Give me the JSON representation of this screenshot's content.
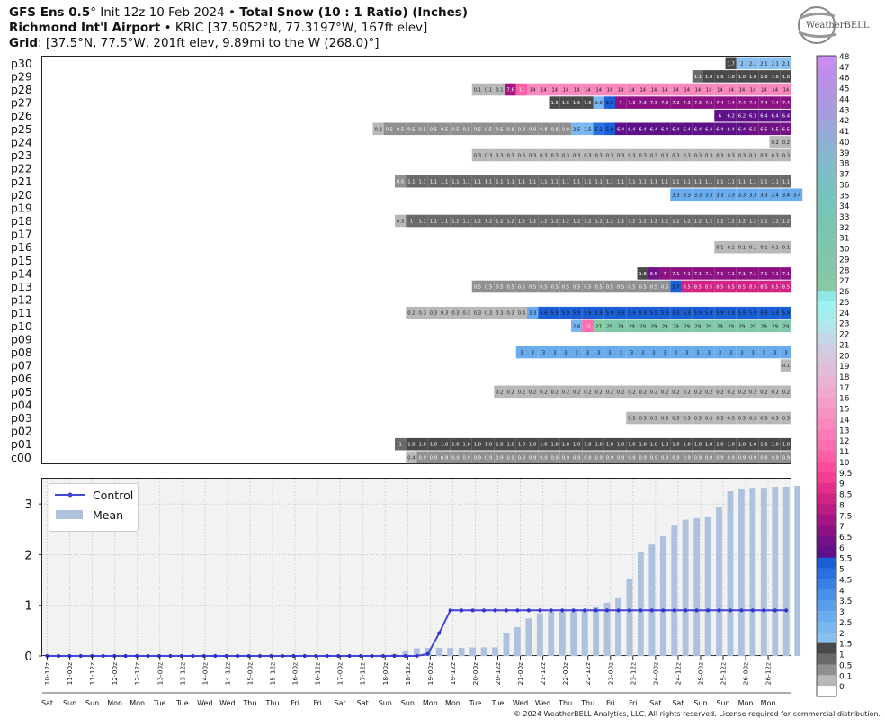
{
  "header": {
    "line1_model": "GFS Ens 0.5",
    "line1_deg": "°",
    "line1_init": " Init 12z 10 Feb 2024",
    "line1_sep": " • ",
    "line1_product": "Total Snow (10 : 1 Ratio) (Inches)",
    "line2_station": "Richmond Int'l Airport",
    "line2_sep": " • ",
    "line2_detail": "KRIC [37.5052°N, 77.3197°W, 167ft elev]",
    "line3_label": "Grid",
    "line3_detail": ": [37.5°N, 77.5°W, 201ft elev, 9.89mi to the W (268.0)°]"
  },
  "logo": {
    "text": "WeatherBELL"
  },
  "copyright": "© 2024 WeatherBELL Analytics, LLC. All rights reserved. License required for commercial distribution.",
  "colors": {
    "control_line": "#4545d6",
    "mean_bar": "#aec2de",
    "grid_bg": "#f2f2f2"
  },
  "colorbar": {
    "labels": [
      "48",
      "47",
      "46",
      "45",
      "44",
      "43",
      "42",
      "41",
      "40",
      "39",
      "38",
      "37",
      "36",
      "35",
      "34",
      "33",
      "32",
      "31",
      "30",
      "29",
      "28",
      "27",
      "26",
      "25",
      "24",
      "23",
      "22",
      "21",
      "20",
      "19",
      "18",
      "17",
      "16",
      "15",
      "14",
      "13",
      "12",
      "11",
      "10",
      "9.5",
      "9",
      "8.5",
      "8",
      "7.5",
      "7",
      "6.5",
      "6",
      "5.5",
      "5",
      "4.5",
      "4",
      "3.5",
      "3",
      "2.5",
      "2",
      "1.5",
      "1",
      "0.5",
      "0.1",
      "0"
    ],
    "colors": [
      "#c98ef0",
      "#c08ee9",
      "#b890e5",
      "#b294e2",
      "#ac98df",
      "#a59dde",
      "#9ca5da",
      "#94abd7",
      "#8cb2d3",
      "#85b7cf",
      "#7fbcca",
      "#7bbfc5",
      "#79c1c0",
      "#78c3bc",
      "#79c4b8",
      "#7ac4b4",
      "#7bc5b1",
      "#7dc6ae",
      "#7fc6ab",
      "#81c7a9",
      "#84c8a7",
      "#86cba6",
      "#8ee6e6",
      "#9ff1f1",
      "#a8ecec",
      "#b4e4ea",
      "#c3d8e6",
      "#d0cde2",
      "#dac4de",
      "#e3bcd9",
      "#eab3d4",
      "#f0a8cf",
      "#f49dc9",
      "#f793c3",
      "#f988bd",
      "#fb7cb6",
      "#fc6eae",
      "#fd5fa6",
      "#fc4d9c",
      "#f23f93",
      "#e22f8b",
      "#cf2385",
      "#ba1a83",
      "#a21583",
      "#8c1284",
      "#731186",
      "#5e1189",
      "#1a5fd5",
      "#2a6fdd",
      "#3a7fe3",
      "#4a8fe8",
      "#5a9deb",
      "#6aabee",
      "#7ab6ef",
      "#8ac0f0",
      "#4a4a4a",
      "#6a6a6a",
      "#909090",
      "#b8b8b8",
      "#ffffff"
    ]
  },
  "chart_data": [
    {
      "type": "heatmap",
      "title": "GFS Ens 0.5° Init 12z 10 Feb 2024 • Total Snow (10 : 1 Ratio) (Inches)",
      "members": [
        "p30",
        "p29",
        "p28",
        "p27",
        "p26",
        "p25",
        "p24",
        "p23",
        "p22",
        "p21",
        "p20",
        "p19",
        "p18",
        "p17",
        "p16",
        "p15",
        "p14",
        "p13",
        "p12",
        "p11",
        "p10",
        "p09",
        "p08",
        "p07",
        "p06",
        "p05",
        "p04",
        "p03",
        "p02",
        "p01",
        "c00"
      ],
      "rows": {
        "p30": {
          "start": 62,
          "values": [
            "1.7",
            "2",
            "2.1",
            "2.1",
            "2.1",
            "2.1"
          ]
        },
        "p29": {
          "start": 59,
          "values": [
            "1.1",
            "1.8",
            "1.8",
            "1.8",
            "1.8",
            "1.8",
            "1.8",
            "1.8",
            "1.8"
          ]
        },
        "p28": {
          "start": 39,
          "values": [
            "0.1",
            "0.1",
            "0.1",
            "7.6",
            "11",
            "14",
            "14",
            "14",
            "14",
            "14",
            "14",
            "14",
            "14",
            "14",
            "14",
            "14",
            "14",
            "14",
            "14",
            "14",
            "14",
            "14",
            "14",
            "14",
            "14",
            "14",
            "14",
            "14",
            "14"
          ]
        },
        "p27": {
          "start": 46,
          "values": [
            "1.6",
            "1.6",
            "1.6",
            "1.6",
            "2.9",
            "5.6",
            "7",
            "7.3",
            "7.3",
            "7.3",
            "7.3",
            "7.3",
            "7.3",
            "7.3",
            "7.4",
            "7.4",
            "7.4",
            "7.4",
            "7.4",
            "7.4",
            "7.4",
            "7.4"
          ]
        },
        "p26": {
          "start": 61,
          "values": [
            "6",
            "6.2",
            "6.2",
            "6.3",
            "6.4",
            "6.4",
            "6.4"
          ]
        },
        "p25": {
          "start": 30,
          "values": [
            "0.2",
            "0.5",
            "0.5",
            "0.5",
            "0.5",
            "0.5",
            "0.5",
            "0.5",
            "0.5",
            "0.5",
            "0.5",
            "0.5",
            "0.8",
            "0.8",
            "0.8",
            "0.8",
            "0.8",
            "0.8",
            "2.5",
            "2.5",
            "5.2",
            "5.9",
            "6.4",
            "6.4",
            "6.4",
            "6.4",
            "6.4",
            "6.4",
            "6.4",
            "6.4",
            "6.4",
            "6.4",
            "6.4",
            "6.4",
            "6.5",
            "6.5",
            "6.5",
            "6.5"
          ]
        },
        "p24": {
          "start": 66,
          "values": [
            "0.2",
            "0.2"
          ]
        },
        "p23": {
          "start": 39,
          "values": [
            "0.3",
            "0.3",
            "0.3",
            "0.3",
            "0.3",
            "0.3",
            "0.3",
            "0.3",
            "0.3",
            "0.3",
            "0.3",
            "0.3",
            "0.3",
            "0.3",
            "0.3",
            "0.3",
            "0.3",
            "0.3",
            "0.3",
            "0.3",
            "0.3",
            "0.3",
            "0.3",
            "0.3",
            "0.3",
            "0.3",
            "0.3",
            "0.3",
            "0.3"
          ]
        },
        "p22": {
          "start": 0,
          "values": []
        },
        "p21": {
          "start": 32,
          "values": [
            "0.6",
            "1.1",
            "1.1",
            "1.1",
            "1.1",
            "1.1",
            "1.1",
            "1.1",
            "1.1",
            "1.1",
            "1.1",
            "1.1",
            "1.1",
            "1.1",
            "1.1",
            "1.1",
            "1.1",
            "1.1",
            "1.1",
            "1.1",
            "1.1",
            "1.1",
            "1.1",
            "1.1",
            "1.1",
            "1.1",
            "1.1",
            "1.1",
            "1.1",
            "1.1",
            "1.1",
            "1.1",
            "1.1",
            "1.1",
            "1.1",
            "1.1"
          ]
        },
        "p20": {
          "start": 57,
          "values": [
            "3.3",
            "3.3",
            "3.3",
            "3.3",
            "3.3",
            "3.3",
            "3.3",
            "3.3",
            "3.3",
            "3.4",
            "3.4",
            "3.4"
          ]
        },
        "p19": {
          "start": 0,
          "values": []
        },
        "p18": {
          "start": 32,
          "values": [
            "0.3",
            "1",
            "1.1",
            "1.1",
            "1.1",
            "1.2",
            "1.2",
            "1.2",
            "1.2",
            "1.2",
            "1.2",
            "1.2",
            "1.2",
            "1.2",
            "1.2",
            "1.2",
            "1.2",
            "1.2",
            "1.2",
            "1.2",
            "1.2",
            "1.2",
            "1.2",
            "1.2",
            "1.2",
            "1.2",
            "1.2",
            "1.2",
            "1.2",
            "1.2",
            "1.2",
            "1.2",
            "1.2",
            "1.2",
            "1.2",
            "1.2"
          ]
        },
        "p17": {
          "start": 0,
          "values": []
        },
        "p16": {
          "start": 61,
          "values": [
            "0.1",
            "0.1",
            "0.1",
            "0.1",
            "0.1",
            "0.1",
            "0.1"
          ]
        },
        "p15": {
          "start": 0,
          "values": []
        },
        "p14": {
          "start": 54,
          "values": [
            "1.8",
            "6.5",
            "7",
            "7.1",
            "7.1",
            "7.1",
            "7.1",
            "7.1",
            "7.1",
            "7.1",
            "7.1",
            "7.1",
            "7.1",
            "7.1"
          ]
        },
        "p13": {
          "start": 39,
          "values": [
            "0.5",
            "0.5",
            "0.5",
            "0.5",
            "0.5",
            "0.5",
            "0.5",
            "0.5",
            "0.5",
            "0.5",
            "0.5",
            "0.5",
            "0.5",
            "0.5",
            "0.5",
            "0.5",
            "0.5",
            "0.5",
            "5.7",
            "8.5",
            "8.5",
            "8.5",
            "8.5",
            "8.5",
            "8.5",
            "8.5",
            "8.5",
            "8.5",
            "8.5"
          ]
        },
        "p12": {
          "start": 0,
          "values": []
        },
        "p11": {
          "start": 33,
          "values": [
            "0.2",
            "0.3",
            "0.3",
            "0.3",
            "0.3",
            "0.3",
            "0.3",
            "0.3",
            "0.3",
            "0.3",
            "0.4",
            "3.3",
            "5.6",
            "5.9",
            "5.9",
            "5.9",
            "5.9",
            "5.9",
            "5.9",
            "5.9",
            "5.9",
            "5.9",
            "5.9",
            "5.9",
            "5.9",
            "5.9",
            "5.9",
            "5.9",
            "5.9",
            "5.9",
            "5.9",
            "5.9",
            "5.9",
            "5.9",
            "5.9"
          ]
        },
        "p10": {
          "start": 48,
          "values": [
            "2.6",
            "12",
            "27",
            "29",
            "29",
            "29",
            "29",
            "29",
            "29",
            "29",
            "29",
            "29",
            "29",
            "29",
            "29",
            "29",
            "29",
            "29",
            "29",
            "29"
          ]
        },
        "p09": {
          "start": 0,
          "values": []
        },
        "p08": {
          "start": 43,
          "values": [
            "3",
            "3",
            "3",
            "3",
            "3",
            "3",
            "3",
            "3",
            "3",
            "3",
            "3",
            "3",
            "3",
            "3",
            "3",
            "3",
            "3",
            "3",
            "3",
            "3",
            "3",
            "3",
            "3",
            "3",
            "3"
          ]
        },
        "p07": {
          "start": 67,
          "values": [
            "0.1"
          ]
        },
        "p06": {
          "start": 0,
          "values": []
        },
        "p05": {
          "start": 41,
          "values": [
            "0.2",
            "0.2",
            "0.2",
            "0.2",
            "0.2",
            "0.2",
            "0.2",
            "0.2",
            "0.2",
            "0.2",
            "0.2",
            "0.2",
            "0.2",
            "0.2",
            "0.2",
            "0.2",
            "0.2",
            "0.2",
            "0.2",
            "0.2",
            "0.2",
            "0.2",
            "0.2",
            "0.2",
            "0.2",
            "0.2",
            "0.2"
          ]
        },
        "p04": {
          "start": 0,
          "values": []
        },
        "p03": {
          "start": 53,
          "values": [
            "0.3",
            "0.3",
            "0.3",
            "0.3",
            "0.3",
            "0.3",
            "0.3",
            "0.3",
            "0.3",
            "0.3",
            "0.3",
            "0.3",
            "0.3",
            "0.3",
            "0.3"
          ]
        },
        "p02": {
          "start": 0,
          "values": []
        },
        "p01": {
          "start": 32,
          "values": [
            "1",
            "1.8",
            "1.8",
            "1.8",
            "1.8",
            "1.8",
            "1.8",
            "1.8",
            "1.8",
            "1.8",
            "1.8",
            "1.8",
            "1.8",
            "1.8",
            "1.8",
            "1.8",
            "1.8",
            "1.8",
            "1.8",
            "1.8",
            "1.8",
            "1.8",
            "1.8",
            "1.8",
            "1.8",
            "1.8",
            "1.8",
            "1.8",
            "1.8",
            "1.8",
            "1.8",
            "1.8",
            "1.8",
            "1.8",
            "1.8",
            "1.8"
          ]
        },
        "c00": {
          "start": 33,
          "values": [
            "0.4",
            "0.9",
            "0.9",
            "0.9",
            "0.9",
            "0.9",
            "0.9",
            "0.9",
            "0.9",
            "0.9",
            "0.9",
            "0.9",
            "0.9",
            "0.9",
            "0.9",
            "0.9",
            "0.9",
            "0.9",
            "0.9",
            "0.9",
            "0.9",
            "0.9",
            "0.9",
            "0.9",
            "0.9",
            "0.9",
            "0.9",
            "0.9",
            "0.9",
            "0.9",
            "0.9",
            "0.9",
            "0.9",
            "0.9",
            "0.9"
          ]
        }
      }
    },
    {
      "type": "line",
      "x_ticks": [
        "10-12z",
        "11-00z",
        "11-12z",
        "12-00z",
        "12-12z",
        "13-00z",
        "13-12z",
        "14-00z",
        "14-12z",
        "15-00z",
        "15-12z",
        "16-00z",
        "16-12z",
        "17-00z",
        "17-12z",
        "18-00z",
        "18-12z",
        "19-00z",
        "19-12z",
        "20-00z",
        "20-12z",
        "21-00z",
        "21-12z",
        "22-00z",
        "22-12z",
        "23-00z",
        "23-12z",
        "24-00z",
        "24-12z",
        "25-00z",
        "25-12z",
        "26-00z",
        "26-12z"
      ],
      "day_labels": [
        "Sat",
        "Sun",
        "Sun",
        "Mon",
        "Mon",
        "Tue",
        "Tue",
        "Wed",
        "Wed",
        "Thu",
        "Thu",
        "Fri",
        "Fri",
        "Sat",
        "Sat",
        "Sun",
        "Sun",
        "Mon",
        "Mon",
        "Tue",
        "Tue",
        "Wed",
        "Wed",
        "Thu",
        "Thu",
        "Fri",
        "Fri",
        "Sat",
        "Sat",
        "Sun",
        "Sun",
        "Mon",
        "Mon"
      ],
      "ylim": [
        0,
        3.5
      ],
      "y_ticks": [
        "0",
        "1",
        "2",
        "3"
      ],
      "grid": true,
      "legend_position": "top-left",
      "series": [
        {
          "name": "Control",
          "kind": "line",
          "values": [
            0,
            0,
            0,
            0,
            0,
            0,
            0,
            0,
            0,
            0,
            0,
            0,
            0,
            0,
            0,
            0,
            0,
            0,
            0,
            0,
            0,
            0,
            0,
            0,
            0,
            0,
            0,
            0,
            0,
            0,
            0,
            0,
            0,
            0,
            0.04,
            0.45,
            0.9,
            0.9,
            0.9,
            0.9,
            0.9,
            0.9,
            0.9,
            0.9,
            0.9,
            0.9,
            0.9,
            0.9,
            0.9,
            0.9,
            0.9,
            0.9,
            0.9,
            0.9,
            0.9,
            0.9,
            0.9,
            0.9,
            0.9,
            0.9,
            0.9,
            0.9,
            0.9,
            0.9,
            0.9,
            0.9,
            0.9
          ]
        },
        {
          "name": "Mean",
          "kind": "bar",
          "values": [
            0,
            0,
            0,
            0,
            0,
            0,
            0,
            0,
            0,
            0,
            0,
            0,
            0,
            0,
            0,
            0,
            0,
            0,
            0,
            0,
            0,
            0,
            0,
            0,
            0,
            0,
            0,
            0,
            0,
            0,
            0.02,
            0.04,
            0.11,
            0.15,
            0.16,
            0.16,
            0.16,
            0.16,
            0.17,
            0.17,
            0.17,
            0.45,
            0.57,
            0.74,
            0.84,
            0.87,
            0.87,
            0.87,
            0.88,
            0.96,
            1.05,
            1.14,
            1.53,
            2.05,
            2.2,
            2.36,
            2.57,
            2.69,
            2.72,
            2.74,
            2.94,
            3.25,
            3.3,
            3.32,
            3.32,
            3.34,
            3.34,
            3.36
          ]
        }
      ]
    }
  ]
}
